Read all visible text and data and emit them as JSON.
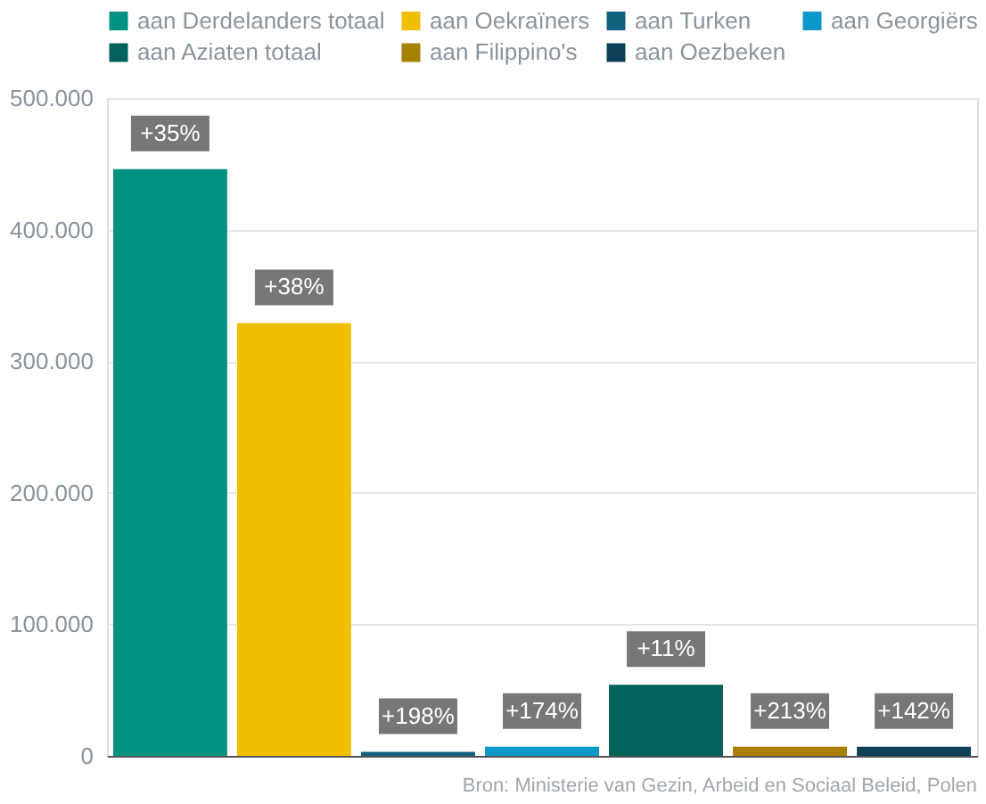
{
  "chart_data": {
    "type": "bar",
    "categories": [
      null,
      null,
      null,
      null,
      null,
      null,
      null
    ],
    "series": [
      {
        "name": "aan Derdelanders totaal",
        "color": "#009180",
        "values": [
          446000,
          null,
          null,
          null,
          null,
          null,
          null
        ]
      },
      {
        "name": "aan Oekraïners",
        "color": "#f0c000",
        "values": [
          null,
          329000,
          null,
          null,
          null,
          null,
          null
        ]
      },
      {
        "name": "aan Turken",
        "color": "#11607e",
        "values": [
          null,
          null,
          3000,
          null,
          null,
          null,
          null
        ]
      },
      {
        "name": "aan Georgiërs",
        "color": "#0c98c8",
        "values": [
          null,
          null,
          null,
          7000,
          null,
          null,
          null
        ]
      },
      {
        "name": "aan Aziaten totaal",
        "color": "#00625a",
        "values": [
          null,
          null,
          null,
          null,
          54000,
          null,
          null
        ]
      },
      {
        "name": "aan Filippino's",
        "color": "#a88000",
        "values": [
          null,
          null,
          null,
          null,
          null,
          7000,
          null
        ]
      },
      {
        "name": "aan Oezbeken",
        "color": "#0e4058",
        "values": [
          null,
          null,
          null,
          null,
          null,
          null,
          7000
        ]
      }
    ],
    "ylim": [
      0,
      500000
    ],
    "yticks": [
      {
        "value": 0,
        "label": "0"
      },
      {
        "value": 100000,
        "label": "100.000"
      },
      {
        "value": 200000,
        "label": "200.000"
      },
      {
        "value": 300000,
        "label": "300.000"
      },
      {
        "value": 400000,
        "label": "400.000"
      },
      {
        "value": 500000,
        "label": "500.000"
      }
    ],
    "grid": "y",
    "legend": "top left",
    "annotations": [
      {
        "text": "+35%",
        "y": 446000
      },
      {
        "text": "+38%",
        "y": 329000
      },
      {
        "text": "+198%",
        "y": 3000
      },
      {
        "text": "+174%",
        "y": 7000
      },
      {
        "text": "+11%",
        "y": 54000
      },
      {
        "text": "+213%",
        "y": 7000
      },
      {
        "text": "+142%",
        "y": 7000
      },
      "Bron: Ministerie van Gezin, Arbeid en Sociaal Beleid, Polen"
    ]
  }
}
